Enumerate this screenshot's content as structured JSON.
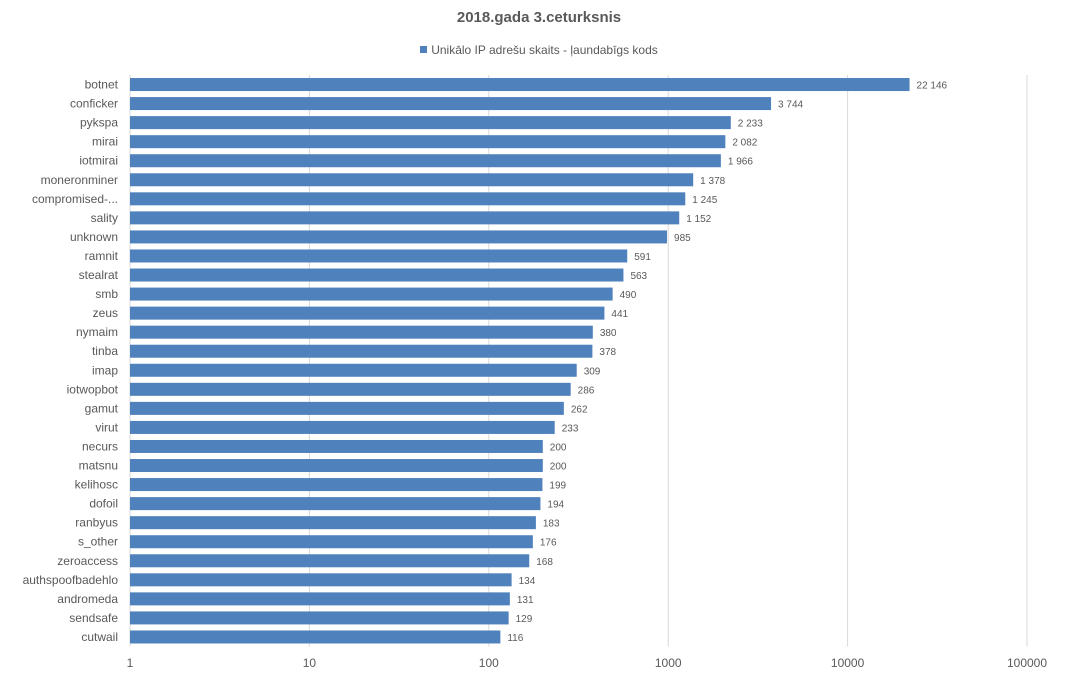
{
  "chart_data": {
    "type": "bar",
    "orientation": "horizontal",
    "title": "2018.gada 3.ceturksnis",
    "xlabel": "",
    "ylabel": "",
    "x_scale": "log",
    "xlim": [
      1,
      100000
    ],
    "x_ticks": [
      "1",
      "10",
      "100",
      "1000",
      "10000",
      "100000"
    ],
    "grid": "vertical",
    "legend_position": "top",
    "series": [
      {
        "name": "Unikālo IP adrešu skaits -  ļaundabīgs kods",
        "color": "#4f81bd",
        "values": [
          22146,
          3744,
          2233,
          2082,
          1966,
          1378,
          1245,
          1152,
          985,
          591,
          563,
          490,
          441,
          380,
          378,
          309,
          286,
          262,
          233,
          200,
          200,
          199,
          194,
          183,
          176,
          168,
          134,
          131,
          129,
          116
        ],
        "labels": [
          "22 146",
          "3 744",
          "2 233",
          "2 082",
          "1 966",
          "1 378",
          "1 245",
          "1 152",
          "985",
          "591",
          "563",
          "490",
          "441",
          "380",
          "378",
          "309",
          "286",
          "262",
          "233",
          "200",
          "200",
          "199",
          "194",
          "183",
          "176",
          "168",
          "134",
          "131",
          "129",
          "116"
        ]
      }
    ],
    "categories": [
      "botnet",
      "conficker",
      "pykspa",
      "mirai",
      "iotmirai",
      "moneronminer",
      "compromised-...",
      "sality",
      "unknown",
      "ramnit",
      "stealrat",
      "smb",
      "zeus",
      "nymaim",
      "tinba",
      "imap",
      "iotwopbot",
      "gamut",
      "virut",
      "necurs",
      "matsnu",
      "kelihosc",
      "dofoil",
      "ranbyus",
      "s_other",
      "zeroaccess",
      "authspoofbadehlo",
      "andromeda",
      "sendsafe",
      "cutwail"
    ]
  }
}
